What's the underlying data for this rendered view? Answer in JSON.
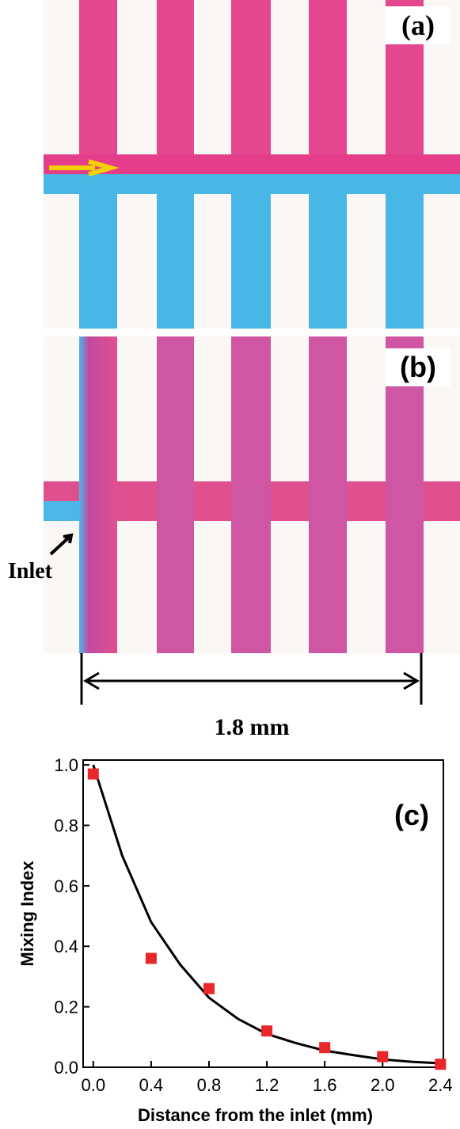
{
  "panels": {
    "a": {
      "label": "(a)"
    },
    "b": {
      "label": "(b)",
      "inlet": "Inlet",
      "scale": "1.8 mm"
    }
  },
  "chart_data": {
    "type": "scatter",
    "label": "(c)",
    "x_label": "Distance from the inlet (mm)",
    "y_label": "Mixing Index",
    "x": [
      0.0,
      0.4,
      0.8,
      1.2,
      1.6,
      2.0,
      2.4
    ],
    "values": [
      0.97,
      0.36,
      0.26,
      0.12,
      0.065,
      0.035,
      0.01
    ],
    "color": "#e8262b",
    "fit": {
      "x": [
        0,
        0.2,
        0.4,
        0.6,
        0.8,
        1.0,
        1.2,
        1.4,
        1.6,
        1.8,
        2.0,
        2.2,
        2.4
      ],
      "values": [
        1.0,
        0.7,
        0.48,
        0.34,
        0.23,
        0.16,
        0.11,
        0.08,
        0.055,
        0.04,
        0.026,
        0.018,
        0.013
      ],
      "color": "#000000"
    },
    "xlim": [
      -0.07,
      2.42
    ],
    "ylim": [
      0,
      1.016
    ],
    "xticks": [
      {
        "value": 0,
        "label": "0.0"
      },
      0.4,
      0.8,
      1.2,
      1.6,
      {
        "value": 2,
        "label": "2.0"
      },
      2.4
    ],
    "yticks": [
      {
        "value": 0,
        "label": "0.0"
      },
      0.2,
      0.4,
      0.6,
      0.8,
      {
        "value": 1,
        "label": "1.0"
      }
    ]
  }
}
